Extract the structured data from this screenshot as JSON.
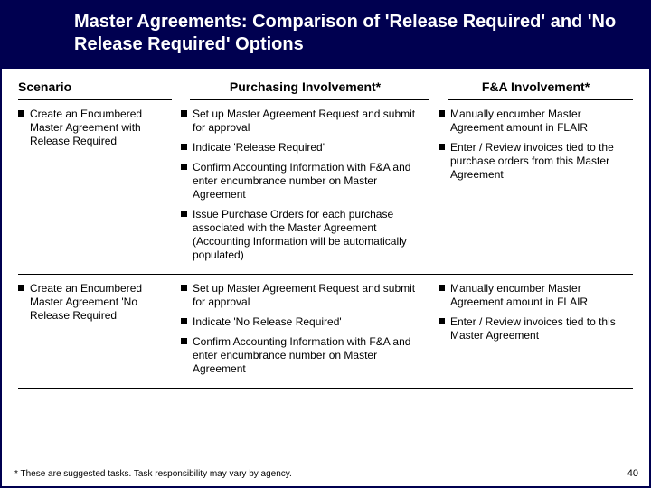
{
  "title": "Master Agreements:  Comparison of 'Release Required' and 'No Release Required' Options",
  "headers": {
    "scenario": "Scenario",
    "purchasing": "Purchasing Involvement*",
    "fa": "F&A Involvement*"
  },
  "rows": [
    {
      "scenario": "Create an Encumbered Master Agreement with Release Required",
      "purchasing": [
        "Set up Master Agreement Request and submit for approval",
        "Indicate 'Release Required'",
        "Confirm Accounting Information with F&A and enter encumbrance number on Master Agreement",
        "Issue Purchase Orders for each purchase associated with the Master Agreement (Accounting Information will be automatically populated)"
      ],
      "fa": [
        "Manually encumber Master Agreement amount in FLAIR",
        "Enter / Review invoices tied to the purchase orders from this Master Agreement"
      ]
    },
    {
      "scenario": "Create an Encumbered Master Agreement 'No Release Required",
      "purchasing": [
        "Set up Master Agreement Request and submit for approval",
        "Indicate 'No Release Required'",
        "Confirm Accounting Information with F&A and enter encumbrance number on Master Agreement"
      ],
      "fa": [
        "Manually encumber Master Agreement amount in FLAIR",
        "Enter / Review invoices tied to this Master Agreement"
      ]
    }
  ],
  "footnote": "* These are suggested tasks.  Task responsibility may vary by agency.",
  "page_number": "40"
}
